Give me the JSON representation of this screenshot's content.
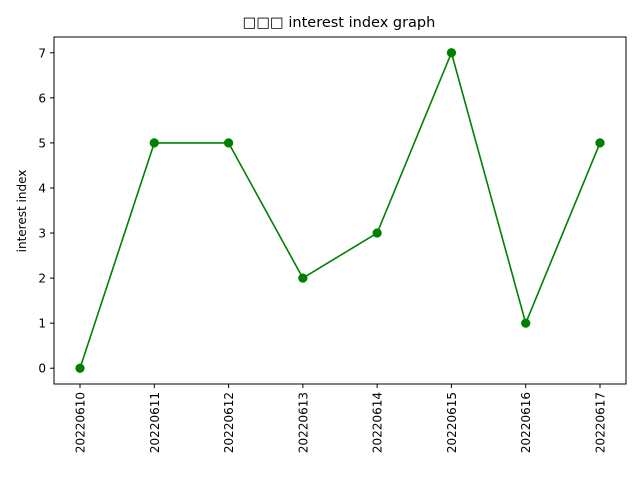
{
  "chart_data": {
    "type": "line",
    "title": "□□□ interest index graph",
    "xlabel": "",
    "ylabel": "interest index",
    "categories": [
      "20220610",
      "20220611",
      "20220612",
      "20220613",
      "20220614",
      "20220615",
      "20220616",
      "20220617"
    ],
    "series": [
      {
        "values": [
          0,
          5,
          5,
          2,
          3,
          7,
          1,
          5
        ],
        "color": "#008000",
        "marker": "circle"
      }
    ],
    "yticks": [
      0,
      1,
      2,
      3,
      4,
      5,
      6,
      7
    ],
    "ylim": [
      -0.35,
      7.35
    ],
    "grid": false,
    "legend": "none"
  }
}
